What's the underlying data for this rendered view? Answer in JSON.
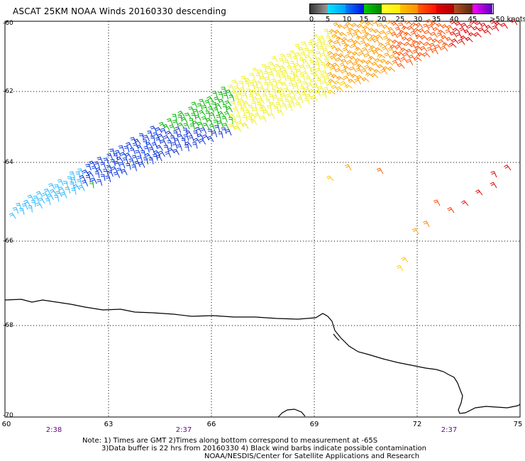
{
  "title": "ASCAT 25KM NOAA Winds 20160330 descending",
  "legend": {
    "colors": [
      "#555555",
      "#00bfff",
      "#0050ff",
      "#00a800",
      "#ffff00",
      "#ffc000",
      "#ff7f00",
      "#ff0000",
      "#8b4513",
      "#ff00ff",
      "#6b00c8"
    ],
    "labels": [
      "0",
      "5",
      "10",
      "15",
      "20",
      "25",
      "30",
      "35",
      "40",
      "45",
      ">50 knots"
    ]
  },
  "latitude_labels": [
    "-60",
    "-62",
    "-64",
    "-66",
    "-68",
    "-70"
  ],
  "longitude_labels": [
    "60",
    "63",
    "66",
    "69",
    "72",
    "75"
  ],
  "times": [
    "2:38",
    "2:37",
    "2:37"
  ],
  "notes": [
    "Note: 1) Times are GMT 2)Times along bottom correspond to measurement at -65S",
    "3)Data buffer is 22 hrs from 20160330 4) Black wind barbs indicate possible contamination",
    "NOAA/NESDIS/Center for Satellite Applications and Research"
  ],
  "wind_speed_color_scale": "knots"
}
